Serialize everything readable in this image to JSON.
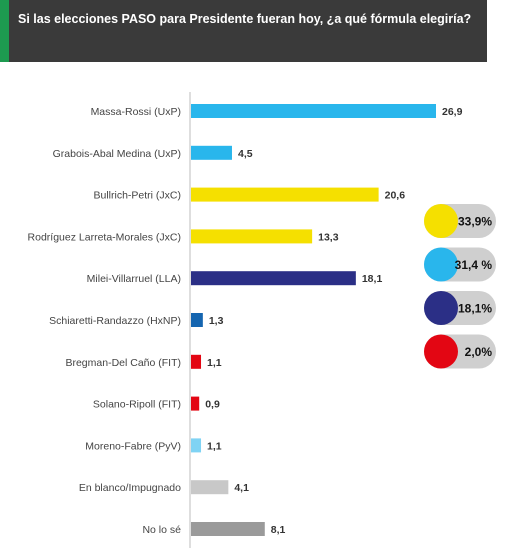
{
  "header": {
    "title": "Si las elecciones PASO para Presidente fueran hoy, ¿a qué fórmula elegiría?"
  },
  "colors": {
    "header_bg": "#3a3a3a",
    "accent_green": "#1d9a50",
    "pill_bg": "#cfcfcf"
  },
  "chart_data": {
    "type": "bar",
    "orientation": "horizontal",
    "title": "Si las elecciones PASO para Presidente fueran hoy, ¿a qué fórmula elegiría?",
    "xlim": [
      0,
      27
    ],
    "grid": false,
    "categories": [
      "Massa-Rossi (UxP)",
      "Grabois-Abal Medina (UxP)",
      "Bullrich-Petri (JxC)",
      "Rodríguez Larreta-Morales (JxC)",
      "Milei-Villarruel (LLA)",
      "Schiaretti-Randazzo (HxNP)",
      "Bregman-Del Caño (FIT)",
      "Solano-Ripoll (FIT)",
      "Moreno-Fabre (PyV)",
      "En blanco/Impugnado",
      "No lo sé"
    ],
    "values": [
      26.9,
      4.5,
      20.6,
      13.3,
      18.1,
      1.3,
      1.1,
      0.9,
      1.1,
      4.1,
      8.1
    ],
    "value_labels": [
      "26,9",
      "4,5",
      "20,6",
      "13,3",
      "18,1",
      "1,3",
      "1,1",
      "0,9",
      "1,1",
      "4,1",
      "8,1"
    ],
    "bar_colors": [
      "#29b6ec",
      "#29b6ec",
      "#f5e000",
      "#f5e000",
      "#2b2f86",
      "#1565b0",
      "#e30613",
      "#e30613",
      "#7fd3f4",
      "#c8c8c8",
      "#9a9a9a"
    ],
    "totals": [
      {
        "label": "33,9%",
        "value": 33.9,
        "color": "#f5e000"
      },
      {
        "label": "31,4 %",
        "value": 31.4,
        "color": "#29b6ec"
      },
      {
        "label": "18,1%",
        "value": 18.1,
        "color": "#2b2f86"
      },
      {
        "label": "2,0%",
        "value": 2.0,
        "color": "#e30613"
      }
    ]
  }
}
